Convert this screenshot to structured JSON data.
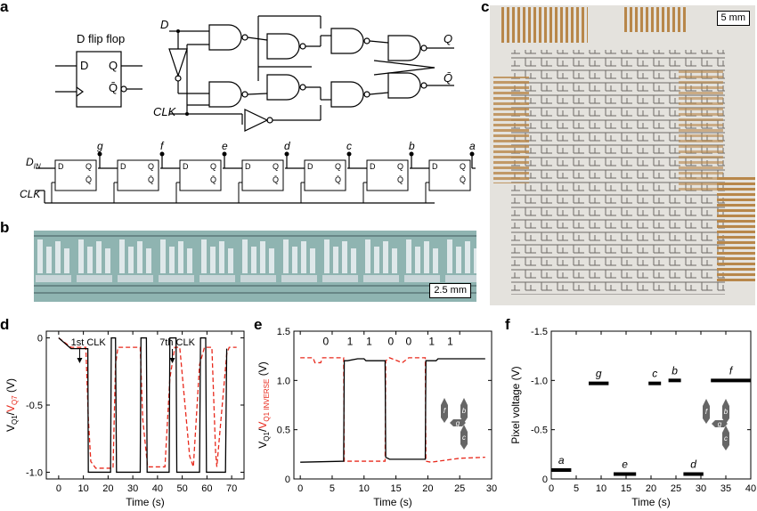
{
  "panel_labels": {
    "a": "a",
    "b": "b",
    "c": "c",
    "d": "d",
    "e": "e",
    "f": "f"
  },
  "panel_a": {
    "dff_title": "D flip flop",
    "dff_pins": {
      "d": "D",
      "q": "Q",
      "qbar": "Q̄"
    },
    "gate_signals": {
      "d": "D",
      "clk": "CLK",
      "q": "Q",
      "qbar": "Q̄"
    },
    "chain_inputs": {
      "din": "D",
      "din_sub": "IN",
      "clk": "CLK"
    },
    "chain_outputs": [
      "g",
      "f",
      "e",
      "d",
      "c",
      "b",
      "a"
    ],
    "chain_pins": {
      "d": "D",
      "q": "Q",
      "qbar": "Q̄"
    }
  },
  "panel_b": {
    "scale_bar": "2.5 mm"
  },
  "panel_c": {
    "scale_bar": "5 mm"
  },
  "panel_d": {
    "ylabel_prefix": "V",
    "ylabel_q1_sub": "Q1",
    "ylabel_sep": "/",
    "ylabel_red": "V",
    "ylabel_red_sub": "Q7",
    "ylabel_unit": " (V)",
    "xlabel": "Time (s)",
    "xticks": [
      "0",
      "10",
      "20",
      "30",
      "40",
      "50",
      "60",
      "70"
    ],
    "yticks": [
      "0",
      "-0.5",
      "-1.0"
    ],
    "annotations": [
      "1st CLK",
      "7th CLK"
    ]
  },
  "panel_e": {
    "ylabel_prefix": "V",
    "ylabel_q1_sub": "Q1",
    "ylabel_sep": "/",
    "ylabel_red": "V",
    "ylabel_red_sub": "Q1 INVERSE",
    "ylabel_unit": " (V)",
    "xlabel": "Time (s)",
    "xticks": [
      "0",
      "5",
      "10",
      "15",
      "20",
      "25",
      "30"
    ],
    "yticks": [
      "0",
      "0.5",
      "1.0",
      "1.5"
    ],
    "bits": [
      "0",
      "1",
      "1",
      "0",
      "0",
      "1",
      "1"
    ],
    "segment_letters": [
      "f",
      "b",
      "g",
      "c"
    ]
  },
  "panel_f": {
    "ylabel": "Pixel voltage (V)",
    "xlabel": "Time (s)",
    "xticks": [
      "0",
      "5",
      "10",
      "15",
      "20",
      "25",
      "30",
      "35",
      "40"
    ],
    "yticks": [
      "-1.5",
      "-1.0",
      "-0.5",
      "0"
    ],
    "segment_letters": [
      "f",
      "b",
      "g",
      "c"
    ]
  },
  "chart_data": [
    {
      "type": "line",
      "xlabel": "Time (s)",
      "ylabel": "VQ1/VQ7 (V)",
      "xlim": [
        -5,
        75
      ],
      "ylim": [
        -1.05,
        0.05
      ],
      "series": [
        {
          "name": "VQ1",
          "color": "#000000",
          "x": [
            0,
            5,
            11.8,
            12,
            21,
            21.3,
            23,
            23.4,
            33,
            33.3,
            35.5,
            35.8,
            44.7,
            45,
            47.5,
            47.8,
            57,
            57.4,
            59.5,
            59.8,
            67.5,
            68
          ],
          "y": [
            0,
            -0.08,
            -0.08,
            -1,
            -1,
            0,
            0,
            -1,
            -1,
            0,
            0,
            -1,
            -1,
            0,
            0,
            -1,
            -1,
            0,
            0,
            -1,
            -1,
            -0.08
          ]
        },
        {
          "name": "VQ7",
          "color": "#e8291c",
          "x": [
            0,
            5,
            11,
            12,
            13,
            15,
            22,
            23,
            24,
            33,
            34,
            36,
            43,
            45,
            47,
            49,
            53,
            54.5,
            57,
            59,
            62,
            63.5,
            64,
            68,
            69,
            72
          ],
          "y": [
            0,
            -0.07,
            -0.07,
            -0.6,
            -0.92,
            -0.97,
            -0.97,
            -0.2,
            -0.07,
            -0.07,
            -0.6,
            -0.96,
            -0.96,
            -0.3,
            -0.07,
            -0.07,
            -0.88,
            -0.96,
            -0.2,
            -0.07,
            -0.07,
            -0.85,
            -0.96,
            -0.12,
            -0.07,
            -0.07
          ]
        }
      ]
    },
    {
      "type": "line",
      "xlabel": "Time (s)",
      "ylabel": "VQ1/VQ1 INVERSE (V)",
      "xlim": [
        0,
        30
      ],
      "ylim": [
        0,
        1.5
      ],
      "series": [
        {
          "name": "VQ1",
          "color": "#000000",
          "x": [
            0,
            6.8,
            6.9,
            7.4,
            9,
            10,
            10.3,
            13.3,
            13.4,
            14,
            19.6,
            19.7,
            20.2,
            21.3,
            21.6,
            22.8,
            29
          ],
          "y": [
            0.17,
            0.18,
            1.2,
            1.2,
            1.22,
            1.22,
            1.2,
            1.2,
            0.22,
            0.2,
            0.2,
            1.2,
            1.2,
            1.2,
            1.22,
            1.22,
            1.22
          ]
        },
        {
          "name": "VQ1 INVERSE",
          "color": "#e8291c",
          "x": [
            0,
            2,
            2.3,
            3.2,
            3.5,
            6.8,
            6.9,
            10,
            13.3,
            13.4,
            14,
            16,
            17,
            19.6,
            19.7,
            20.5,
            25,
            29
          ],
          "y": [
            1.23,
            1.23,
            1.18,
            1.18,
            1.23,
            1.23,
            0.18,
            0.18,
            0.18,
            1.2,
            1.23,
            1.18,
            1.23,
            1.23,
            0.18,
            0.17,
            0.21,
            0.22
          ]
        }
      ]
    },
    {
      "type": "scatter",
      "xlabel": "Time (s)",
      "ylabel": "Pixel voltage (V)",
      "xlim": [
        0,
        40
      ],
      "ylim": [
        0,
        -1.5
      ],
      "series": [
        {
          "name": "segments",
          "color": "#000000",
          "points": [
            {
              "label": "a",
              "x0": 0,
              "x1": 4,
              "y": -0.09
            },
            {
              "label": "g",
              "x0": 7.5,
              "x1": 11.5,
              "y": -0.97
            },
            {
              "label": "e",
              "x0": 12.5,
              "x1": 17,
              "y": -0.05
            },
            {
              "label": "c",
              "x0": 19.5,
              "x1": 22,
              "y": -0.97
            },
            {
              "label": "b",
              "x0": 23.5,
              "x1": 26,
              "y": -1.0
            },
            {
              "label": "d",
              "x0": 26.5,
              "x1": 30.5,
              "y": -0.05
            },
            {
              "label": "f",
              "x0": 32,
              "x1": 40,
              "y": -1.0
            }
          ]
        }
      ]
    }
  ]
}
